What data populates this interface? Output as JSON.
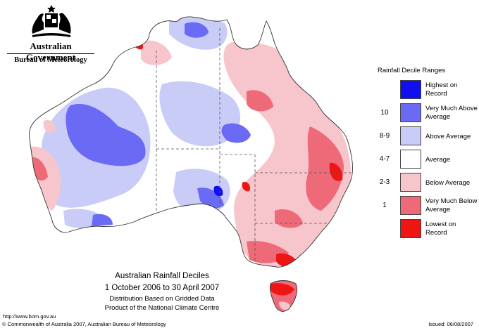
{
  "branding": {
    "government": "Australian Government",
    "bureau": "Bureau of Meteorology"
  },
  "legend": {
    "title": "Rainfall Decile Ranges",
    "items": [
      {
        "range": "",
        "label": "Highest on Record",
        "color": "#1010ee"
      },
      {
        "range": "10",
        "label": "Very Much Above Average",
        "color": "#6a6af5"
      },
      {
        "range": "8-9",
        "label": "Above Average",
        "color": "#c8ccf7"
      },
      {
        "range": "4-7",
        "label": "Average",
        "color": "#ffffff"
      },
      {
        "range": "2-3",
        "label": "Below Average",
        "color": "#f7c5cc"
      },
      {
        "range": "1",
        "label": "Very Much Below Average",
        "color": "#ee6a78"
      },
      {
        "range": "",
        "label": "Lowest on Record",
        "color": "#ee1515"
      }
    ]
  },
  "map": {
    "title": "Australian Rainfall Deciles",
    "period": "1 October 2006 to 30 April 2007",
    "note1": "Distribution Based on Gridded Data",
    "note2": "Product of the National Climate Centre"
  },
  "footer": {
    "url": "http://www.bom.gov.au",
    "copyright": "© Commonwealth of Australia 2007, Australian Bureau of Meteorology",
    "issued": "Issued: 06/08/2007"
  }
}
